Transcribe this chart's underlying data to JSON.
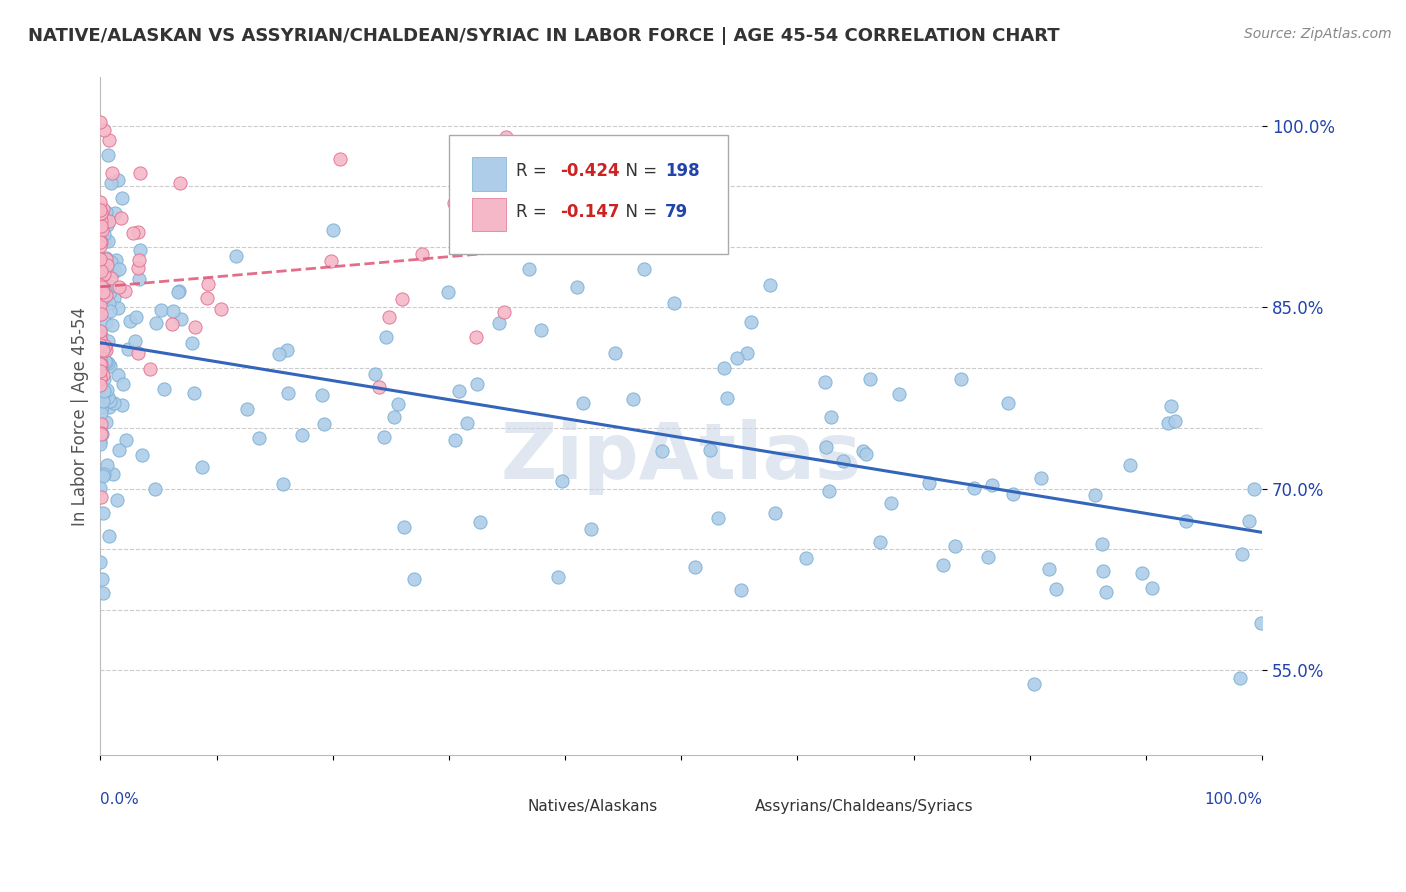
{
  "title": "NATIVE/ALASKAN VS ASSYRIAN/CHALDEAN/SYRIAC IN LABOR FORCE | AGE 45-54 CORRELATION CHART",
  "source": "Source: ZipAtlas.com",
  "ylabel": "In Labor Force | Age 45-54",
  "blue_R": "-0.424",
  "blue_N": "198",
  "pink_R": "-0.147",
  "pink_N": "79",
  "blue_color": "#aecde8",
  "blue_edge": "#7aafd4",
  "pink_color": "#f5b8c8",
  "pink_edge": "#e07090",
  "blue_line_color": "#3366bb",
  "pink_line_color": "#dd5577",
  "legend_R_color": "#cc2222",
  "legend_N_color": "#2244aa",
  "title_color": "#333333",
  "axis_color": "#555555",
  "grid_color": "#cccccc",
  "watermark_color": "#ccd8e8",
  "background_color": "#ffffff",
  "xlim": [
    0.0,
    1.0
  ],
  "ylim": [
    0.48,
    1.04
  ],
  "right_yticks": [
    0.55,
    0.7,
    0.85,
    1.0
  ],
  "right_ytick_labels": [
    "55.0%",
    "70.0%",
    "85.0%",
    "100.0%"
  ],
  "grid_yticks": [
    0.55,
    0.6,
    0.65,
    0.7,
    0.75,
    0.8,
    0.85,
    0.9,
    0.95,
    1.0
  ]
}
